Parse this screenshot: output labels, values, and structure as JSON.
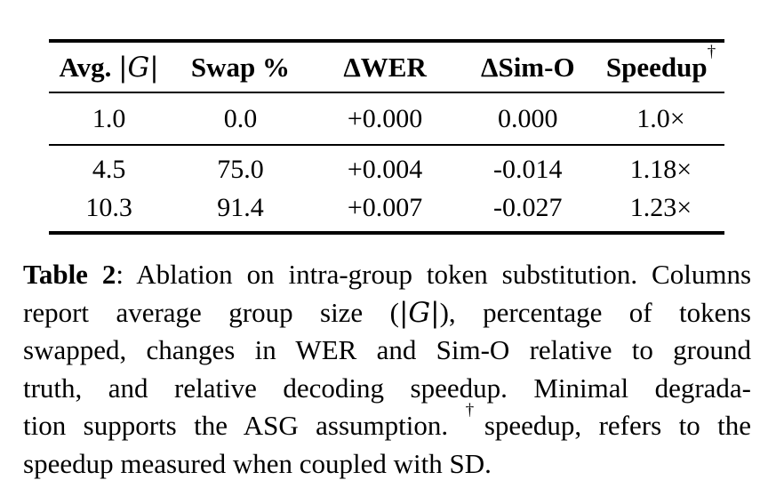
{
  "colors": {
    "background": "#ffffff",
    "text": "#000000",
    "rule": "#000000"
  },
  "table": {
    "header": {
      "col1_bold": "Avg. ",
      "col1_math": "|G|",
      "col2": "Swap %",
      "col3": "ΔWER",
      "col4": "ΔSim-O",
      "col5": "Speedup",
      "col5_sup": "†"
    },
    "rows": [
      [
        "1.0",
        "0.0",
        "+0.000",
        "0.000",
        "1.0×"
      ],
      [
        "4.5",
        "75.0",
        "+0.004",
        "-0.014",
        "1.18×"
      ],
      [
        "10.3",
        "91.4",
        "+0.007",
        "-0.027",
        "1.23×"
      ]
    ]
  },
  "chart_data": {
    "type": "table",
    "title": "Table 2: Ablation on intra-group token substitution",
    "columns": [
      "Avg. |G|",
      "Swap %",
      "ΔWER",
      "ΔSim-O",
      "Speedup†"
    ],
    "rows": [
      {
        "avg_group_size": 1.0,
        "swap_pct": 0.0,
        "delta_wer": "+0.000",
        "delta_simo": "0.000",
        "speedup": "1.0×"
      },
      {
        "avg_group_size": 4.5,
        "swap_pct": 75.0,
        "delta_wer": "+0.004",
        "delta_simo": "-0.014",
        "speedup": "1.18×"
      },
      {
        "avg_group_size": 10.3,
        "swap_pct": 91.4,
        "delta_wer": "+0.007",
        "delta_simo": "-0.027",
        "speedup": "1.23×"
      }
    ]
  },
  "caption": {
    "label_bold": "Table 2",
    "line1_rest": ": Ablation on intra-group token substitution. Columns",
    "line2_pre": "report average group size (",
    "line2_math": "|G|",
    "line2_post": "), percentage of tokens",
    "line3": "swapped, changes in WER and Sim-O relative to ground",
    "line4": "truth, and relative decoding speedup. Minimal degrada-",
    "line5_pre": "tion supports the ASG assumption. ",
    "line5_sup": "†",
    "line5_post": "speedup, refers to the",
    "line6": "speedup measured when coupled with SD."
  }
}
